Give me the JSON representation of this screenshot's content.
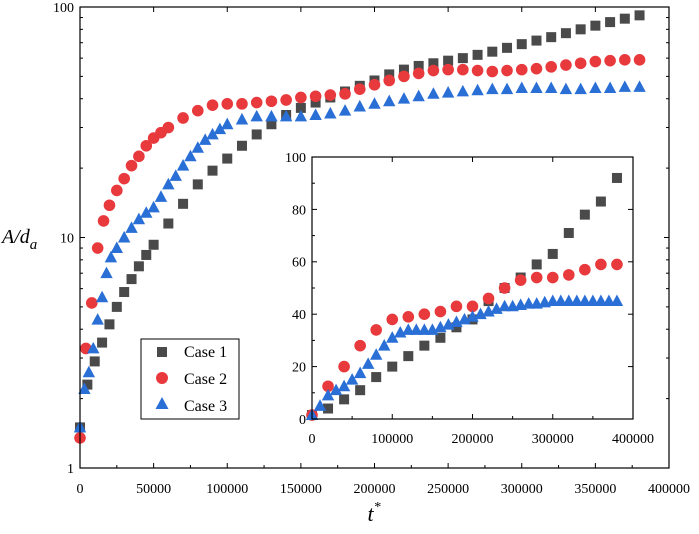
{
  "chart_data": [
    {
      "type": "scatter",
      "title": "",
      "xlabel": "t",
      "xlabel_sup": "*",
      "ylabel": "A/d",
      "ylabel_sub": "a",
      "yscale": "log",
      "xlim": [
        0,
        400000
      ],
      "ylim": [
        1,
        100
      ],
      "xticks": [
        0,
        50000,
        100000,
        150000,
        200000,
        250000,
        300000,
        350000,
        400000
      ],
      "xtick_labels": [
        "0",
        "50000",
        "100000",
        "150000",
        "200000",
        "250000",
        "300000",
        "350000",
        "400000"
      ],
      "yticks": [
        1,
        10,
        100
      ],
      "ytick_labels": [
        "1",
        "10",
        "100"
      ],
      "legend": {
        "position": "lower-left",
        "entries": [
          "Case 1",
          "Case 2",
          "Case 3"
        ]
      },
      "series": [
        {
          "name": "Case 1",
          "marker": "square",
          "color": "#4a4a4a",
          "x": [
            0,
            5000,
            10000,
            15000,
            20000,
            25000,
            30000,
            35000,
            40000,
            45000,
            50000,
            60000,
            70000,
            80000,
            90000,
            100000,
            110000,
            120000,
            130000,
            140000,
            150000,
            160000,
            170000,
            180000,
            190000,
            200000,
            210000,
            220000,
            230000,
            240000,
            250000,
            260000,
            270000,
            280000,
            290000,
            300000,
            310000,
            320000,
            330000,
            340000,
            350000,
            360000,
            370000,
            380000
          ],
          "y": [
            1.5,
            2.3,
            2.9,
            3.5,
            4.2,
            5,
            5.8,
            6.6,
            7.5,
            8.4,
            9.3,
            11.5,
            14,
            17,
            19.5,
            22,
            25,
            28,
            31,
            34,
            36.5,
            38.5,
            40.5,
            43,
            45.5,
            48,
            51,
            53.5,
            55.5,
            57,
            58.5,
            60,
            62,
            64,
            66.5,
            69,
            71.5,
            74,
            77,
            80,
            83,
            86,
            89,
            92
          ]
        },
        {
          "name": "Case 2",
          "marker": "circle",
          "color": "#e8393d",
          "x": [
            0,
            4000,
            8000,
            12000,
            16000,
            20000,
            25000,
            30000,
            35000,
            40000,
            45000,
            50000,
            55000,
            60000,
            70000,
            80000,
            90000,
            100000,
            110000,
            120000,
            130000,
            140000,
            150000,
            160000,
            170000,
            180000,
            190000,
            200000,
            210000,
            220000,
            230000,
            240000,
            250000,
            260000,
            270000,
            280000,
            290000,
            300000,
            310000,
            320000,
            330000,
            340000,
            350000,
            360000,
            370000,
            380000
          ],
          "y": [
            1.35,
            3.3,
            5.2,
            9,
            11.8,
            13.8,
            16,
            18,
            20.5,
            22.5,
            25,
            27,
            28.5,
            30,
            33,
            35.5,
            37.5,
            38,
            38,
            38.5,
            39,
            39.5,
            40.5,
            41,
            41.5,
            42,
            44,
            46,
            48,
            50,
            51.5,
            53,
            53.5,
            53.5,
            53,
            52.5,
            53,
            53.5,
            54,
            55,
            56,
            57,
            58,
            58.5,
            59,
            59
          ]
        },
        {
          "name": "Case 3",
          "marker": "triangle",
          "color": "#2a6fd6",
          "x": [
            0,
            3000,
            6000,
            9000,
            12000,
            15000,
            18000,
            21000,
            25000,
            30000,
            35000,
            40000,
            45000,
            50000,
            55000,
            60000,
            65000,
            70000,
            75000,
            80000,
            85000,
            90000,
            95000,
            100000,
            110000,
            120000,
            130000,
            140000,
            150000,
            160000,
            170000,
            180000,
            190000,
            200000,
            210000,
            220000,
            230000,
            240000,
            250000,
            260000,
            270000,
            280000,
            290000,
            300000,
            310000,
            320000,
            330000,
            340000,
            350000,
            360000,
            370000,
            380000
          ],
          "y": [
            1.5,
            2.2,
            2.6,
            3.3,
            4.4,
            5.5,
            7,
            8.2,
            9,
            10,
            11,
            12,
            12.8,
            13.5,
            15,
            17,
            18.5,
            20.5,
            22.5,
            24.5,
            26.5,
            28,
            29.5,
            31,
            32.5,
            33.5,
            33.5,
            33.5,
            33.5,
            34,
            34.5,
            35.5,
            37,
            38,
            39,
            40,
            41,
            42,
            42.5,
            43,
            43.5,
            44,
            44,
            44.5,
            44.5,
            44.5,
            44,
            44,
            44.5,
            44.5,
            45,
            45
          ]
        }
      ]
    },
    {
      "type": "scatter",
      "title": "",
      "xlabel": "",
      "ylabel": "",
      "yscale": "linear",
      "xlim": [
        0,
        400000
      ],
      "ylim": [
        0,
        100
      ],
      "xticks": [
        0,
        100000,
        200000,
        300000,
        400000
      ],
      "xtick_labels": [
        "0",
        "100000",
        "200000",
        "300000",
        "400000"
      ],
      "yticks": [
        0,
        20,
        40,
        60,
        80,
        100
      ],
      "ytick_labels": [
        "0",
        "20",
        "40",
        "60",
        "80",
        "100"
      ],
      "series": [
        {
          "name": "Case 1",
          "marker": "square",
          "color": "#4a4a4a",
          "x": [
            0,
            20000,
            40000,
            60000,
            80000,
            100000,
            120000,
            140000,
            160000,
            180000,
            200000,
            220000,
            240000,
            260000,
            280000,
            300000,
            320000,
            340000,
            360000,
            380000
          ],
          "y": [
            1.5,
            4,
            7.5,
            11,
            16,
            20,
            24,
            28,
            31,
            35,
            38,
            45,
            50,
            54,
            59,
            63,
            71,
            78,
            83,
            92
          ]
        },
        {
          "name": "Case 2",
          "marker": "circle",
          "color": "#e8393d",
          "x": [
            0,
            20000,
            40000,
            60000,
            80000,
            100000,
            120000,
            140000,
            160000,
            180000,
            200000,
            220000,
            240000,
            260000,
            280000,
            300000,
            320000,
            340000,
            360000,
            380000
          ],
          "y": [
            1.5,
            12.5,
            20,
            28,
            34,
            38,
            39,
            40,
            41,
            43,
            43,
            46,
            50,
            53,
            54,
            54,
            55,
            57,
            59,
            59
          ]
        },
        {
          "name": "Case 3",
          "marker": "triangle",
          "color": "#2a6fd6",
          "x": [
            0,
            10000,
            20000,
            30000,
            40000,
            50000,
            60000,
            70000,
            80000,
            90000,
            100000,
            110000,
            120000,
            130000,
            140000,
            150000,
            160000,
            170000,
            180000,
            190000,
            200000,
            210000,
            220000,
            230000,
            240000,
            250000,
            260000,
            270000,
            280000,
            290000,
            300000,
            310000,
            320000,
            330000,
            340000,
            350000,
            360000,
            370000,
            380000
          ],
          "y": [
            1.5,
            5,
            9,
            11,
            12.5,
            15,
            17.5,
            21,
            24.5,
            28,
            31,
            33,
            34,
            34,
            34,
            34,
            35,
            36,
            37,
            38,
            39,
            40,
            41,
            42,
            43,
            43,
            43.5,
            44,
            44,
            44.5,
            45,
            45,
            45,
            45,
            45,
            45,
            45,
            45,
            45
          ]
        }
      ]
    }
  ]
}
